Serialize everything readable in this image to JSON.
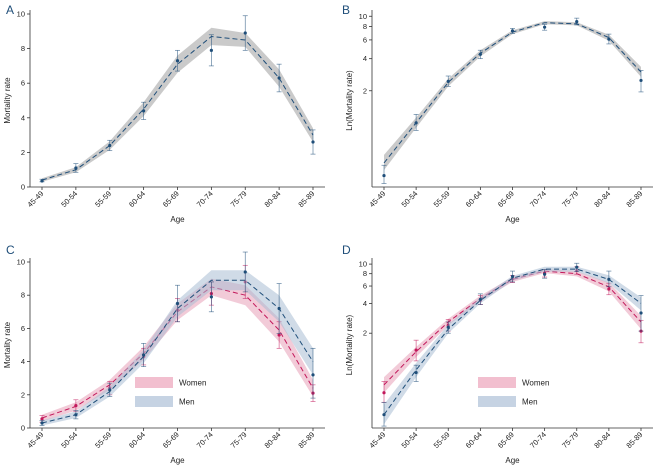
{
  "chart_data": [
    {
      "panel": "A",
      "type": "line",
      "scale": "linear",
      "xlabel": "Age",
      "ylabel": "Mortality rate",
      "categories": [
        "45-49",
        "50-54",
        "55-59",
        "60-64",
        "65-69",
        "70-74",
        "75-79",
        "80-84",
        "85-89"
      ],
      "yticks": [
        0,
        2,
        4,
        6,
        8,
        10
      ],
      "ylim": [
        0,
        10
      ],
      "series": [
        {
          "name": "All",
          "color": "#1f4e79",
          "band_color": "#9e9e9e",
          "fitted": [
            0.4,
            1.0,
            2.4,
            4.5,
            7.1,
            8.7,
            8.5,
            6.3,
            3.0
          ],
          "band_low": [
            0.3,
            0.85,
            2.15,
            4.1,
            6.6,
            8.2,
            8.1,
            5.8,
            2.6
          ],
          "band_high": [
            0.5,
            1.15,
            2.65,
            4.9,
            7.6,
            9.2,
            8.9,
            6.8,
            3.4
          ],
          "observed": [
            0.35,
            1.1,
            2.4,
            4.4,
            7.3,
            7.9,
            8.9,
            6.3,
            2.6
          ],
          "err_low": [
            0.3,
            0.85,
            2.1,
            3.9,
            6.7,
            7.0,
            7.9,
            5.5,
            1.9
          ],
          "err_high": [
            0.45,
            1.35,
            2.7,
            4.9,
            7.9,
            8.8,
            9.9,
            7.1,
            3.3
          ]
        }
      ]
    },
    {
      "panel": "B",
      "type": "line",
      "scale": "log",
      "xlabel": "Age",
      "ylabel": "Ln(Mortality rate)",
      "categories": [
        "45-49",
        "50-54",
        "55-59",
        "60-64",
        "65-69",
        "70-74",
        "75-79",
        "80-84",
        "85-89"
      ],
      "yticks": [
        2,
        4,
        6,
        8,
        10
      ],
      "ylim": [
        0.25,
        10.5
      ],
      "series": [
        {
          "name": "All",
          "color": "#1f4e79",
          "band_color": "#9e9e9e",
          "fitted": [
            0.42,
            1.0,
            2.4,
            4.5,
            7.1,
            8.7,
            8.5,
            6.3,
            3.0
          ],
          "band_low": [
            0.36,
            0.9,
            2.2,
            4.2,
            6.8,
            8.4,
            8.2,
            5.9,
            2.7
          ],
          "band_high": [
            0.5,
            1.12,
            2.6,
            4.8,
            7.4,
            9.0,
            8.8,
            6.7,
            3.35
          ],
          "observed": [
            0.32,
            1.0,
            2.45,
            4.4,
            7.3,
            7.9,
            8.9,
            6.1,
            2.5
          ],
          "err_low": [
            0.27,
            0.85,
            2.2,
            4.0,
            6.9,
            7.4,
            8.3,
            5.5,
            1.95
          ],
          "err_high": [
            0.4,
            1.2,
            2.75,
            4.8,
            7.7,
            8.4,
            9.6,
            6.8,
            3.1
          ]
        }
      ]
    },
    {
      "panel": "C",
      "type": "line",
      "scale": "linear",
      "xlabel": "Age",
      "ylabel": "Mortality rate",
      "categories": [
        "45-49",
        "50-54",
        "55-59",
        "60-64",
        "65-69",
        "70-74",
        "75-79",
        "80-84",
        "85-89"
      ],
      "yticks": [
        0,
        2,
        4,
        6,
        8,
        10
      ],
      "ylim": [
        0,
        10
      ],
      "legend": [
        {
          "label": "Women",
          "color": "#f2bfcf"
        },
        {
          "label": "Men",
          "color": "#c6d3e3"
        }
      ],
      "series": [
        {
          "name": "Women",
          "color": "#c2185b",
          "band_color": "#e8a0b8",
          "fitted": [
            0.6,
            1.3,
            2.6,
            4.5,
            7.0,
            8.5,
            8.0,
            5.9,
            2.4
          ],
          "band_low": [
            0.4,
            1.05,
            2.3,
            4.1,
            6.5,
            8.0,
            7.4,
            5.2,
            1.9
          ],
          "band_high": [
            0.8,
            1.55,
            2.9,
            4.9,
            7.5,
            9.0,
            8.6,
            6.6,
            2.9
          ],
          "observed": [
            0.55,
            1.35,
            2.4,
            4.3,
            7.1,
            8.1,
            8.8,
            5.6,
            2.1
          ],
          "err_low": [
            0.35,
            1.0,
            2.0,
            3.8,
            6.4,
            7.4,
            7.8,
            4.8,
            1.6
          ],
          "err_high": [
            0.75,
            1.7,
            2.8,
            4.8,
            7.8,
            8.8,
            9.8,
            6.4,
            2.6
          ]
        },
        {
          "name": "Men",
          "color": "#1f4e79",
          "band_color": "#a9bdd4",
          "fitted": [
            0.3,
            0.8,
            2.2,
            4.3,
            7.2,
            8.9,
            8.9,
            7.2,
            4.0
          ],
          "band_low": [
            0.15,
            0.6,
            1.9,
            3.9,
            6.7,
            8.3,
            8.3,
            6.4,
            3.2
          ],
          "band_high": [
            0.45,
            1.0,
            2.5,
            4.7,
            7.7,
            9.5,
            9.5,
            8.0,
            4.8
          ],
          "observed": [
            0.3,
            0.8,
            2.3,
            4.4,
            7.5,
            7.9,
            9.4,
            7.2,
            3.2
          ],
          "err_low": [
            0.15,
            0.55,
            1.9,
            3.7,
            6.4,
            7.0,
            8.2,
            5.7,
            1.8
          ],
          "err_high": [
            0.45,
            1.05,
            2.7,
            5.1,
            8.6,
            8.8,
            10.6,
            8.7,
            4.8
          ]
        }
      ]
    },
    {
      "panel": "D",
      "type": "line",
      "scale": "log",
      "xlabel": "Age",
      "ylabel": "Ln(Mortality rate)",
      "categories": [
        "45-49",
        "50-54",
        "55-59",
        "60-64",
        "65-69",
        "70-74",
        "75-79",
        "80-84",
        "85-89"
      ],
      "yticks": [
        2,
        4,
        6,
        8,
        10
      ],
      "ylim": [
        0.22,
        10.5
      ],
      "legend": [
        {
          "label": "Women",
          "color": "#f2bfcf"
        },
        {
          "label": "Men",
          "color": "#c6d3e3"
        }
      ],
      "series": [
        {
          "name": "Women",
          "color": "#c2185b",
          "band_color": "#e8a0b8",
          "fitted": [
            0.6,
            1.3,
            2.6,
            4.5,
            7.0,
            8.5,
            8.0,
            5.9,
            2.6
          ],
          "band_low": [
            0.5,
            1.15,
            2.4,
            4.2,
            6.6,
            8.1,
            7.5,
            5.3,
            2.2
          ],
          "band_high": [
            0.72,
            1.45,
            2.8,
            4.8,
            7.4,
            8.9,
            8.5,
            6.5,
            3.0
          ],
          "observed": [
            0.5,
            1.35,
            2.4,
            4.3,
            7.1,
            8.1,
            8.6,
            5.6,
            2.1
          ],
          "err_low": [
            0.4,
            1.05,
            2.1,
            3.9,
            6.5,
            7.4,
            7.9,
            4.9,
            1.6
          ],
          "err_high": [
            0.65,
            1.7,
            2.75,
            4.8,
            7.7,
            8.8,
            9.4,
            6.4,
            2.7
          ]
        },
        {
          "name": "Men",
          "color": "#1f4e79",
          "band_color": "#a9bdd4",
          "fitted": [
            0.3,
            0.85,
            2.2,
            4.3,
            7.2,
            8.9,
            8.9,
            7.0,
            4.0
          ],
          "band_low": [
            0.24,
            0.72,
            2.0,
            4.0,
            6.8,
            8.4,
            8.4,
            6.4,
            3.4
          ],
          "band_high": [
            0.38,
            1.0,
            2.45,
            4.6,
            7.6,
            9.4,
            9.4,
            7.7,
            4.6
          ],
          "observed": [
            0.3,
            0.8,
            2.3,
            4.4,
            7.5,
            7.9,
            9.3,
            7.0,
            3.2
          ],
          "err_low": [
            0.23,
            0.65,
            2.0,
            3.9,
            6.6,
            7.2,
            8.4,
            5.9,
            2.1
          ],
          "err_high": [
            0.4,
            0.95,
            2.6,
            5.0,
            8.5,
            8.8,
            10.2,
            8.5,
            4.8
          ]
        }
      ]
    }
  ]
}
